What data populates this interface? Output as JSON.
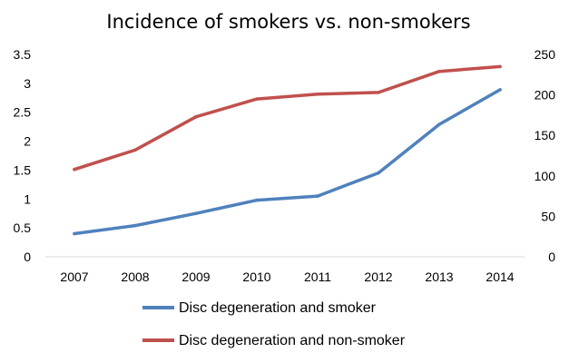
{
  "chart_data": {
    "type": "line",
    "title": "Incidence of smokers vs. non-smokers",
    "categories": [
      "2007",
      "2008",
      "2009",
      "2010",
      "2011",
      "2012",
      "2013",
      "2014"
    ],
    "y_left": {
      "min": 0,
      "max": 3.5,
      "ticks": [
        "0",
        "0.5",
        "1",
        "1.5",
        "2",
        "2.5",
        "3",
        "3.5"
      ]
    },
    "y_right": {
      "min": 0,
      "max": 250,
      "ticks": [
        "0",
        "50",
        "100",
        "150",
        "200",
        "250"
      ]
    },
    "grid": false,
    "legend_position": "bottom",
    "series": [
      {
        "name": "Disc degeneration and smoker",
        "axis": "left",
        "color": "#4f81bd",
        "values": [
          0.4,
          0.54,
          0.75,
          0.98,
          1.05,
          1.45,
          2.29,
          2.89
        ]
      },
      {
        "name": "Disc degeneration and non-smoker",
        "axis": "right",
        "color": "#c0504d",
        "values": [
          108,
          132,
          173,
          195,
          201,
          203,
          229,
          235
        ]
      }
    ]
  }
}
